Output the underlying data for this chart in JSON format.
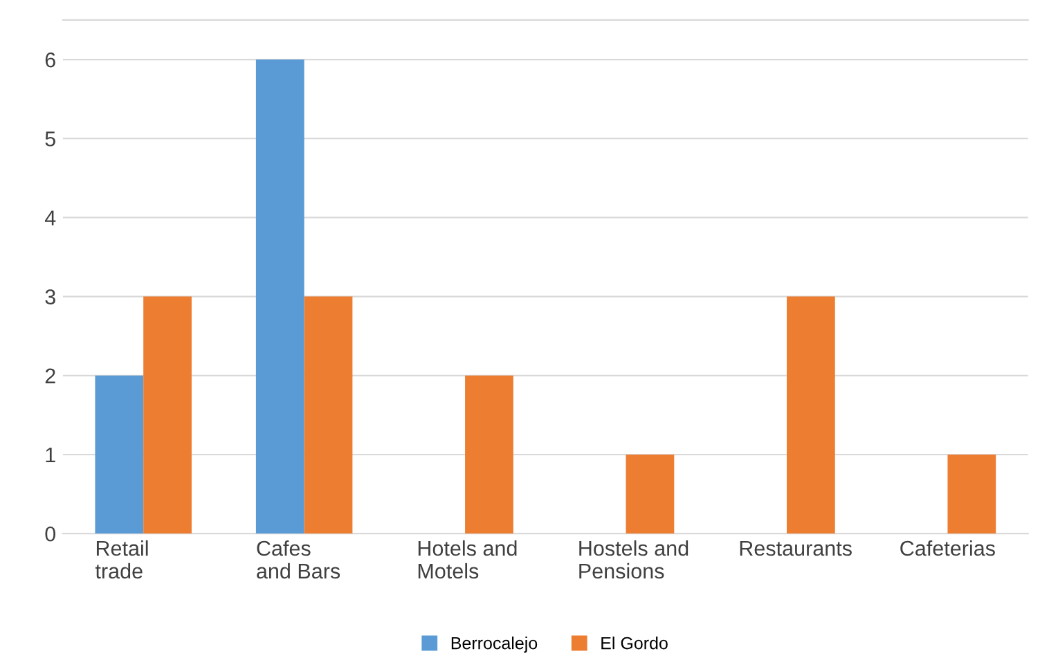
{
  "chart_data": {
    "type": "bar",
    "categories": [
      "Retail\ntrade",
      "Cafes\nand Bars",
      "Hotels and\nMotels",
      "Hostels and\nPensions",
      "Restaurants",
      "Cafeterias"
    ],
    "series": [
      {
        "name": "Berrocalejo",
        "color": "#5b9bd5",
        "values": [
          2,
          6,
          0,
          0,
          0,
          0
        ]
      },
      {
        "name": "El Gordo",
        "color": "#ed7d31",
        "values": [
          3,
          3,
          2,
          1,
          3,
          1
        ]
      }
    ],
    "ylim": [
      0,
      6.5
    ],
    "yticks": [
      0,
      1,
      2,
      3,
      4,
      5,
      6
    ],
    "grid": "y",
    "legend": "bottom"
  }
}
